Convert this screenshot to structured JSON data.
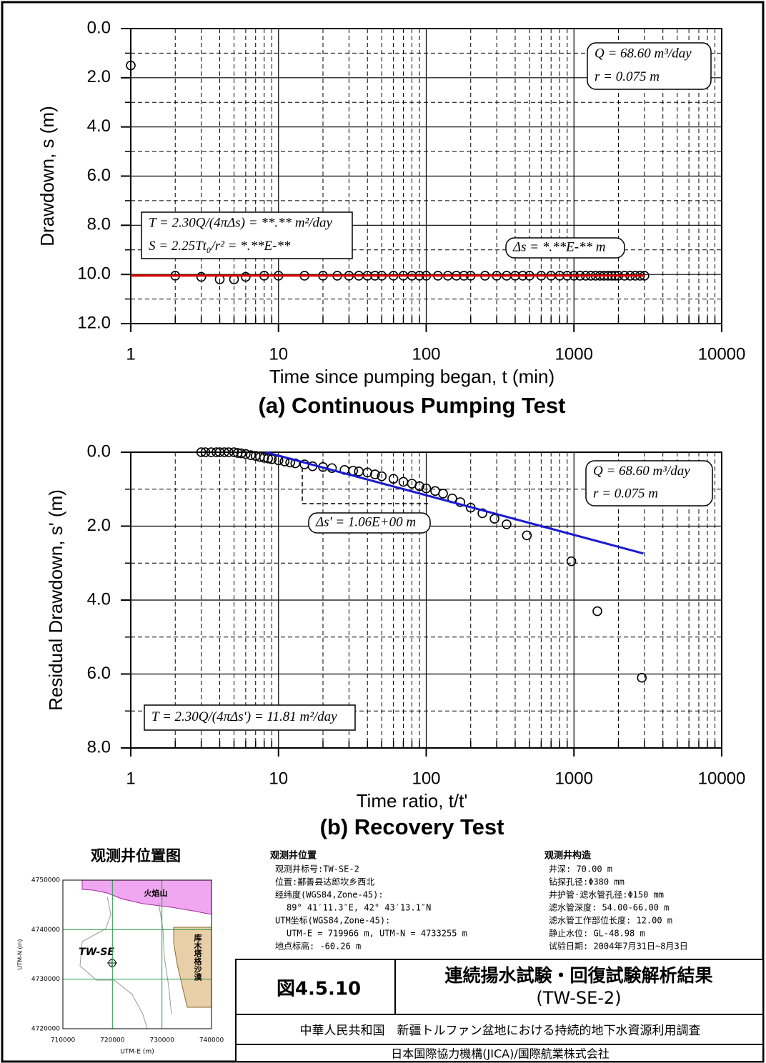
{
  "chart_data": [
    {
      "type": "scatter",
      "xscale": "log",
      "yreversed": true,
      "grid": true,
      "xlabel": "Time since pumping began, t (min)",
      "ylabel": "Drawdown, s (m)",
      "caption": "(a) Continuous Pumping Test",
      "xlim": [
        1,
        10000
      ],
      "ylim": [
        0,
        12
      ],
      "xticks": [
        1,
        10,
        100,
        1000,
        10000
      ],
      "xminorticks": [
        2,
        3,
        4,
        5,
        6,
        7,
        8,
        9,
        20,
        30,
        40,
        50,
        60,
        70,
        80,
        90,
        200,
        300,
        400,
        500,
        600,
        700,
        800,
        900,
        2000,
        3000,
        4000,
        5000,
        6000,
        7000,
        8000,
        9000
      ],
      "yticks": [
        {
          "value": 0,
          "label": "0.0"
        },
        {
          "value": 2,
          "label": "2.0"
        },
        {
          "value": 4,
          "label": "4.0"
        },
        {
          "value": 6,
          "label": "6.0"
        },
        {
          "value": 8,
          "label": "8.0"
        },
        {
          "value": 10,
          "label": "10.0"
        },
        {
          "value": 12,
          "label": "12.0"
        }
      ],
      "yminorticks": [
        1,
        3,
        5,
        7,
        9,
        11
      ],
      "series": [
        {
          "type": "scatter",
          "color": "#000000",
          "x": [
            1,
            2,
            3,
            4,
            5,
            6,
            8,
            10,
            15,
            20,
            25,
            30,
            35,
            40,
            45,
            50,
            60,
            70,
            80,
            90,
            100,
            120,
            140,
            160,
            180,
            200,
            250,
            300,
            350,
            400,
            450,
            500,
            600,
            700,
            800,
            900,
            1000,
            1100,
            1200,
            1300,
            1400,
            1500,
            1600,
            1700,
            1800,
            1900,
            2000,
            2200,
            2400,
            2600,
            2800,
            3000
          ],
          "values": [
            1.5,
            10.05,
            10.1,
            10.2,
            10.2,
            10.1,
            10.05,
            10.05,
            10.05,
            10.05,
            10.05,
            10.05,
            10.05,
            10.05,
            10.05,
            10.05,
            10.05,
            10.05,
            10.05,
            10.05,
            10.05,
            10.05,
            10.05,
            10.05,
            10.05,
            10.05,
            10.05,
            10.05,
            10.05,
            10.05,
            10.05,
            10.05,
            10.05,
            10.05,
            10.05,
            10.05,
            10.05,
            10.05,
            10.05,
            10.05,
            10.05,
            10.05,
            10.05,
            10.05,
            10.05,
            10.05,
            10.05,
            10.05,
            10.05,
            10.05,
            10.05,
            10.05
          ]
        },
        {
          "type": "line",
          "color": "#e00000",
          "x": [
            1,
            3000
          ],
          "values": [
            10.05,
            10.05
          ]
        }
      ],
      "annotations": [
        [
          "Q = 68.60 m³/day",
          "r = 0.075 m"
        ],
        [
          "T = 2.30Q/(4πΔs) = **.** m²/day",
          "S = 2.25Tt₀/r² = *.**E-**"
        ],
        [
          "Δs = *.**E-** m"
        ]
      ]
    },
    {
      "type": "scatter",
      "xscale": "log",
      "yreversed": true,
      "grid": true,
      "xlabel": "Time ratio, t/t'",
      "ylabel": "Residual Drawdown, s' (m)",
      "caption": "(b) Recovery Test",
      "xlim": [
        1,
        10000
      ],
      "ylim": [
        0,
        8
      ],
      "xticks": [
        1,
        10,
        100,
        1000,
        10000
      ],
      "xminorticks": [
        2,
        3,
        4,
        5,
        6,
        7,
        8,
        9,
        20,
        30,
        40,
        50,
        60,
        70,
        80,
        90,
        200,
        300,
        400,
        500,
        600,
        700,
        800,
        900,
        2000,
        3000,
        4000,
        5000,
        6000,
        7000,
        8000,
        9000
      ],
      "yticks": [
        {
          "value": 0,
          "label": "0.0"
        },
        {
          "value": 2,
          "label": "2.0"
        },
        {
          "value": 4,
          "label": "4.0"
        },
        {
          "value": 6,
          "label": "6.0"
        },
        {
          "value": 8,
          "label": "8.0"
        }
      ],
      "yminorticks": [
        1,
        3,
        5,
        7
      ],
      "series": [
        {
          "type": "scatter",
          "color": "#000000",
          "x": [
            3,
            3.2,
            3.5,
            3.8,
            4,
            4.3,
            4.6,
            5,
            5.3,
            5.6,
            6,
            6.5,
            7,
            7.5,
            8,
            8.5,
            9,
            10,
            11,
            12,
            13,
            15,
            17,
            20,
            23,
            28,
            32,
            35,
            40,
            45,
            50,
            60,
            70,
            80,
            90,
            100,
            115,
            130,
            150,
            170,
            200,
            240,
            290,
            350,
            480,
            960,
            1440,
            2880
          ],
          "values": [
            0,
            0,
            0,
            0,
            0,
            0,
            0,
            0,
            0.02,
            0.03,
            0.05,
            0.08,
            0.1,
            0.13,
            0.15,
            0.17,
            0.19,
            0.22,
            0.25,
            0.28,
            0.3,
            0.33,
            0.38,
            0.4,
            0.43,
            0.48,
            0.5,
            0.52,
            0.55,
            0.6,
            0.65,
            0.72,
            0.8,
            0.85,
            0.92,
            0.98,
            1.05,
            1.12,
            1.25,
            1.35,
            1.5,
            1.65,
            1.8,
            1.95,
            2.25,
            2.95,
            4.3,
            6.1
          ]
        },
        {
          "type": "line",
          "color": "#1a1ad0",
          "x": [
            8.2,
            2950
          ],
          "values": [
            0,
            2.74
          ]
        }
      ],
      "annotations": [
        [
          "Q = 68.60 m³/day",
          "r = 0.075 m"
        ],
        [
          "Δs' = 1.06E+00 m"
        ],
        [
          "T = 2.30Q/(4πΔs') = 11.81 m²/day"
        ]
      ]
    }
  ],
  "location_map": {
    "title": "观测井位置图",
    "xlabel": "UTM-E (m)",
    "ylabel": "UTM-N (m)",
    "xlim": [
      710000,
      740000
    ],
    "ylim": [
      4720000,
      4750000
    ],
    "xticks": [
      710000,
      720000,
      730000,
      740000
    ],
    "yticks": [
      4720000,
      4730000,
      4740000,
      4750000
    ],
    "mountain": "火焰山",
    "desert": "库木塔格沙漠",
    "well": "TW-SE"
  },
  "well_location": {
    "heading": "观测井位置",
    "lines": [
      "观测井标号:TW-SE-2",
      "位置:鄯善县达郎坎乡西北",
      "经纬度(WGS84,Zone-45):",
      "89° 41′11.3″E, 42° 43′13.1″N",
      "UTM坐标(WGS84,Zone-45):",
      "UTM-E = 719966  m, UTM-N = 4733255 m",
      "地点标高: -60.26 m"
    ]
  },
  "well_structure": {
    "heading": "观测井构造",
    "lines": [
      "井深: 70.00 m",
      "钻探孔径:Φ380 mm",
      "井护管·滤水管孔径:Φ150 mm",
      "滤水管深度: 54.00-66.00 m",
      "滤水管工作部位长度: 12.00 m",
      "静止水位: GL-48.98 m",
      "试验日期: 2004年7月31日~8月3日"
    ]
  },
  "title_block": {
    "figure": "図4.5.10",
    "title": "連続揚水試験・回復試験解析結果",
    "well": "(TW-SE-2)",
    "project": "中華人民共和国　新疆トルファン盆地における持続的地下水資源利用調査",
    "company": "日本国際協力機構(JICA)/国際航業株式会社"
  }
}
